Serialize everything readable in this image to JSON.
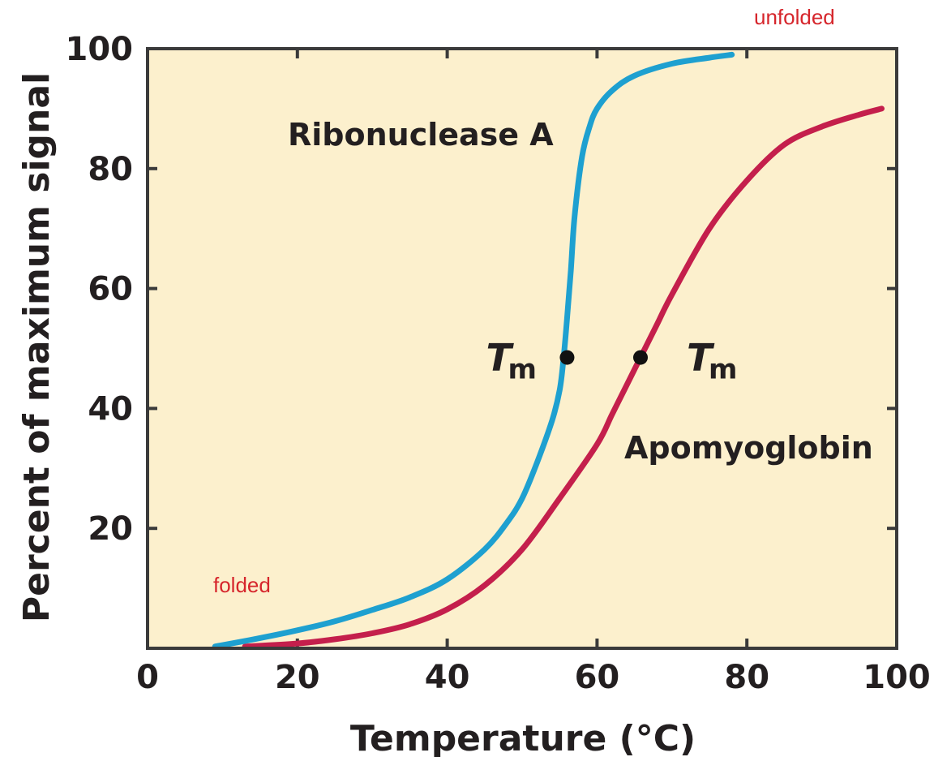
{
  "chart_data": {
    "type": "line",
    "xlabel": "Temperature (°C)",
    "ylabel": "Percent of maximum signal",
    "xlim": [
      0,
      100
    ],
    "ylim": [
      0,
      100
    ],
    "x_ticks": [
      "0",
      "20",
      "40",
      "60",
      "80",
      "100"
    ],
    "y_ticks": [
      "20",
      "40",
      "60",
      "80",
      "100"
    ],
    "grid": false,
    "background_color": "#fcf0cd",
    "series": [
      {
        "name": "Ribonuclease A",
        "color": "#1ea0d0",
        "x": [
          9,
          15,
          20,
          25,
          30,
          35,
          40,
          45,
          48,
          50,
          52,
          54,
          55,
          55.5,
          56,
          56.5,
          57,
          58,
          59,
          60,
          62,
          65,
          70,
          75,
          78
        ],
        "y": [
          0.3,
          1.7,
          3,
          4.5,
          6.4,
          8.5,
          11.5,
          16.5,
          21,
          25,
          31,
          38,
          43,
          48,
          55,
          63,
          72,
          82,
          87,
          90,
          93,
          95.5,
          97.5,
          98.5,
          99
        ]
      },
      {
        "name": "Apomyoglobin",
        "color": "#c41f4c",
        "x": [
          13,
          20,
          25,
          30,
          35,
          40,
          45,
          50,
          55,
          60,
          62,
          64,
          66,
          68,
          70,
          75,
          80,
          85,
          90,
          95,
          98
        ],
        "y": [
          0.3,
          0.8,
          1.5,
          2.5,
          4,
          6.5,
          10.5,
          16.5,
          25,
          34,
          39,
          44,
          49,
          54,
          59,
          70,
          78,
          84,
          87,
          89,
          90
        ]
      }
    ],
    "points": [
      {
        "label": "T",
        "subscript": "m",
        "x": 56,
        "y": 48.5
      },
      {
        "label": "T",
        "subscript": "m",
        "x": 65.8,
        "y": 48.5
      }
    ],
    "annotations": {
      "unfolded": "unfolded",
      "folded": "folded"
    }
  }
}
